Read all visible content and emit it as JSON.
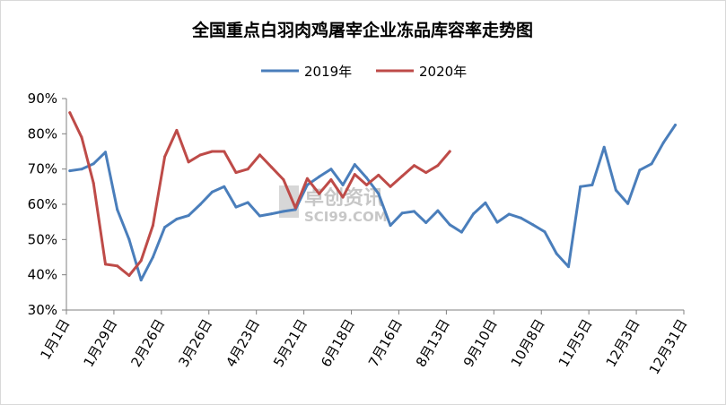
{
  "chart_data": {
    "type": "line",
    "title": "全国重点白羽肉鸡屠宰企业冻品库容率走势图",
    "xlabel": "",
    "ylabel": "",
    "ylim": [
      30,
      90
    ],
    "yticks": [
      "30%",
      "40%",
      "50%",
      "60%",
      "70%",
      "80%",
      "90%"
    ],
    "ytick_values": [
      30,
      40,
      50,
      60,
      70,
      80,
      90
    ],
    "xticks": [
      "1月1日",
      "1月29日",
      "2月26日",
      "3月26日",
      "4月23日",
      "5月21日",
      "6月18日",
      "7月16日",
      "8月13日",
      "9月10日",
      "10月8日",
      "11月5日",
      "12月3日",
      "12月31日"
    ],
    "xtick_days": [
      1,
      29,
      57,
      85,
      113,
      141,
      169,
      197,
      225,
      253,
      281,
      309,
      337,
      365
    ],
    "xlim": [
      1,
      365
    ],
    "grid": false,
    "legend_position": "top",
    "series": [
      {
        "name": "2019年",
        "color": "#4a7ebb",
        "x": [
          3,
          10,
          17,
          24,
          31,
          38,
          45,
          52,
          59,
          66,
          73,
          80,
          87,
          94,
          101,
          108,
          115,
          122,
          129,
          136,
          143,
          150,
          157,
          164,
          171,
          178,
          185,
          192,
          199,
          206,
          213,
          220,
          227,
          234,
          241,
          248,
          255,
          262,
          269,
          276,
          283,
          290,
          297,
          304,
          311,
          318,
          325,
          332,
          339,
          346,
          353,
          360
        ],
        "y": [
          69.5,
          70,
          71.5,
          74.8,
          58.5,
          50,
          38.5,
          45,
          53.5,
          55.8,
          56.8,
          60,
          63.5,
          65,
          59.2,
          60.5,
          56.7,
          57.3,
          58,
          58.5,
          65.5,
          67.8,
          70,
          65.5,
          71.3,
          67.5,
          63,
          54,
          57.5,
          58,
          54.8,
          58.2,
          54.2,
          52.1,
          57.3,
          60.4,
          54.9,
          57.2,
          56.1,
          54.2,
          52.2,
          46,
          42.3,
          65,
          65.5,
          76.2,
          64,
          60.2,
          69.7,
          71.5,
          77.5,
          82.5
        ]
      },
      {
        "name": "2020年",
        "color": "#be4b48",
        "x": [
          3,
          10,
          17,
          24,
          31,
          38,
          45,
          52,
          59,
          66,
          73,
          80,
          87,
          94,
          101,
          108,
          115,
          122,
          129,
          136,
          143,
          150,
          157,
          164,
          171,
          178,
          185,
          192,
          199,
          206,
          213,
          220,
          227
        ],
        "y": [
          86,
          79,
          66,
          43,
          42.5,
          39.8,
          44,
          54,
          73.5,
          81,
          72,
          74,
          75,
          75,
          69,
          70,
          74,
          70.5,
          67,
          59,
          67.3,
          63,
          67,
          62,
          68.5,
          65.5,
          68.3,
          65,
          68,
          71,
          69,
          71,
          75
        ]
      }
    ]
  },
  "watermark": {
    "name": "卓创资讯",
    "sub": "SCI99.COM"
  }
}
